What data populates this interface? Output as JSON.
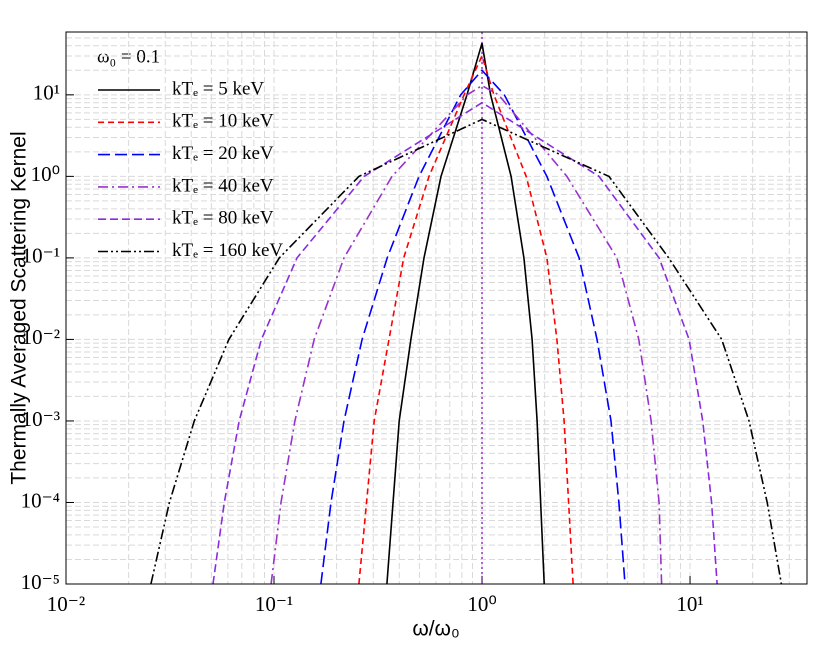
{
  "chart_data": {
    "type": "line",
    "x_label": "ω/ω₀",
    "y_label": "Thermally Averaged Scattering Kernel",
    "legend_title": "ω₀ = 0.1",
    "log_x": true,
    "log_y": true,
    "grid": true,
    "legend_position": "upper-left",
    "xlim": [
      0.01,
      36.5
    ],
    "ylim": [
      1e-05,
      59
    ],
    "xticks": [
      {
        "value": 0.01,
        "label": "10⁻²"
      },
      {
        "value": 0.1,
        "label": "10⁻¹"
      },
      {
        "value": 1,
        "label": "10⁰"
      },
      {
        "value": 10,
        "label": "10¹"
      }
    ],
    "yticks": [
      {
        "value": 1e-05,
        "label": "10⁻⁵"
      },
      {
        "value": 0.0001,
        "label": "10⁻⁴"
      },
      {
        "value": 0.001,
        "label": "10⁻³"
      },
      {
        "value": 0.01,
        "label": "10⁻²"
      },
      {
        "value": 0.1,
        "label": "10⁻¹"
      },
      {
        "value": 1,
        "label": "10⁰"
      },
      {
        "value": 10,
        "label": "10¹"
      }
    ],
    "vline": {
      "x": 1,
      "color": "#9932cc"
    },
    "series": [
      {
        "name": "kTₑ = 5 keV",
        "color": "#000000",
        "dash": "none",
        "x": [
          0.349,
          0.4,
          0.455,
          0.526,
          0.635,
          0.847,
          1,
          1.1,
          1.38,
          1.59,
          1.74,
          1.84,
          1.99
        ],
        "values": [
          1e-05,
          0.001,
          0.01,
          0.1,
          1,
          10,
          43,
          10,
          1,
          0.1,
          0.01,
          0.001,
          1e-05
        ]
      },
      {
        "name": "kTₑ = 10 keV",
        "color": "#ff0000",
        "dash": "6,4",
        "x": [
          0.256,
          0.303,
          0.357,
          0.42,
          0.556,
          0.82,
          1,
          1.14,
          1.63,
          2.05,
          2.29,
          2.48,
          2.74
        ],
        "values": [
          1e-05,
          0.001,
          0.01,
          0.1,
          1,
          10,
          30,
          10,
          1,
          0.1,
          0.01,
          0.001,
          1e-05
        ]
      },
      {
        "name": "kTₑ = 20 keV",
        "color": "#0000ff",
        "dash": "12,5",
        "x": [
          0.168,
          0.188,
          0.217,
          0.265,
          0.35,
          0.498,
          0.79,
          1,
          1.28,
          2.05,
          2.93,
          3.57,
          4.17,
          4.55,
          4.87
        ],
        "values": [
          1e-05,
          0.0001,
          0.001,
          0.01,
          0.1,
          1,
          10,
          20,
          10,
          1,
          0.1,
          0.01,
          0.001,
          0.0001,
          1e-05
        ]
      },
      {
        "name": "kTₑ = 40 keV",
        "color": "#9932cc",
        "dash": "10,4,2,4",
        "x": [
          0.0968,
          0.108,
          0.126,
          0.156,
          0.217,
          0.369,
          0.85,
          1,
          1.2,
          2.56,
          4.45,
          5.67,
          6.5,
          7.1,
          7.3
        ],
        "values": [
          1e-05,
          0.0001,
          0.001,
          0.01,
          0.1,
          1,
          10,
          13,
          10,
          1,
          0.1,
          0.01,
          0.001,
          0.0001,
          1e-05
        ]
      },
      {
        "name": "kTₑ = 80 keV",
        "color": "#8a2be2",
        "dash": "8,4",
        "x": [
          0.0509,
          0.0577,
          0.068,
          0.087,
          0.129,
          0.271,
          1,
          3.65,
          7.1,
          9.9,
          11.5,
          12.7,
          13.5
        ],
        "values": [
          1e-05,
          0.0001,
          0.001,
          0.01,
          0.1,
          1,
          8,
          1,
          0.1,
          0.01,
          0.001,
          0.0001,
          1e-05
        ]
      },
      {
        "name": "kTₑ = 160 keV",
        "color": "#000000",
        "dash": "10,3,2,3,2,3",
        "x": [
          0.0256,
          0.0314,
          0.0414,
          0.0607,
          0.106,
          0.256,
          1,
          4.08,
          7.9,
          14.2,
          19.2,
          23.5,
          27.5
        ],
        "values": [
          1e-05,
          0.0001,
          0.001,
          0.01,
          0.1,
          1,
          5,
          1,
          0.1,
          0.01,
          0.001,
          0.0001,
          1e-05
        ]
      }
    ]
  }
}
